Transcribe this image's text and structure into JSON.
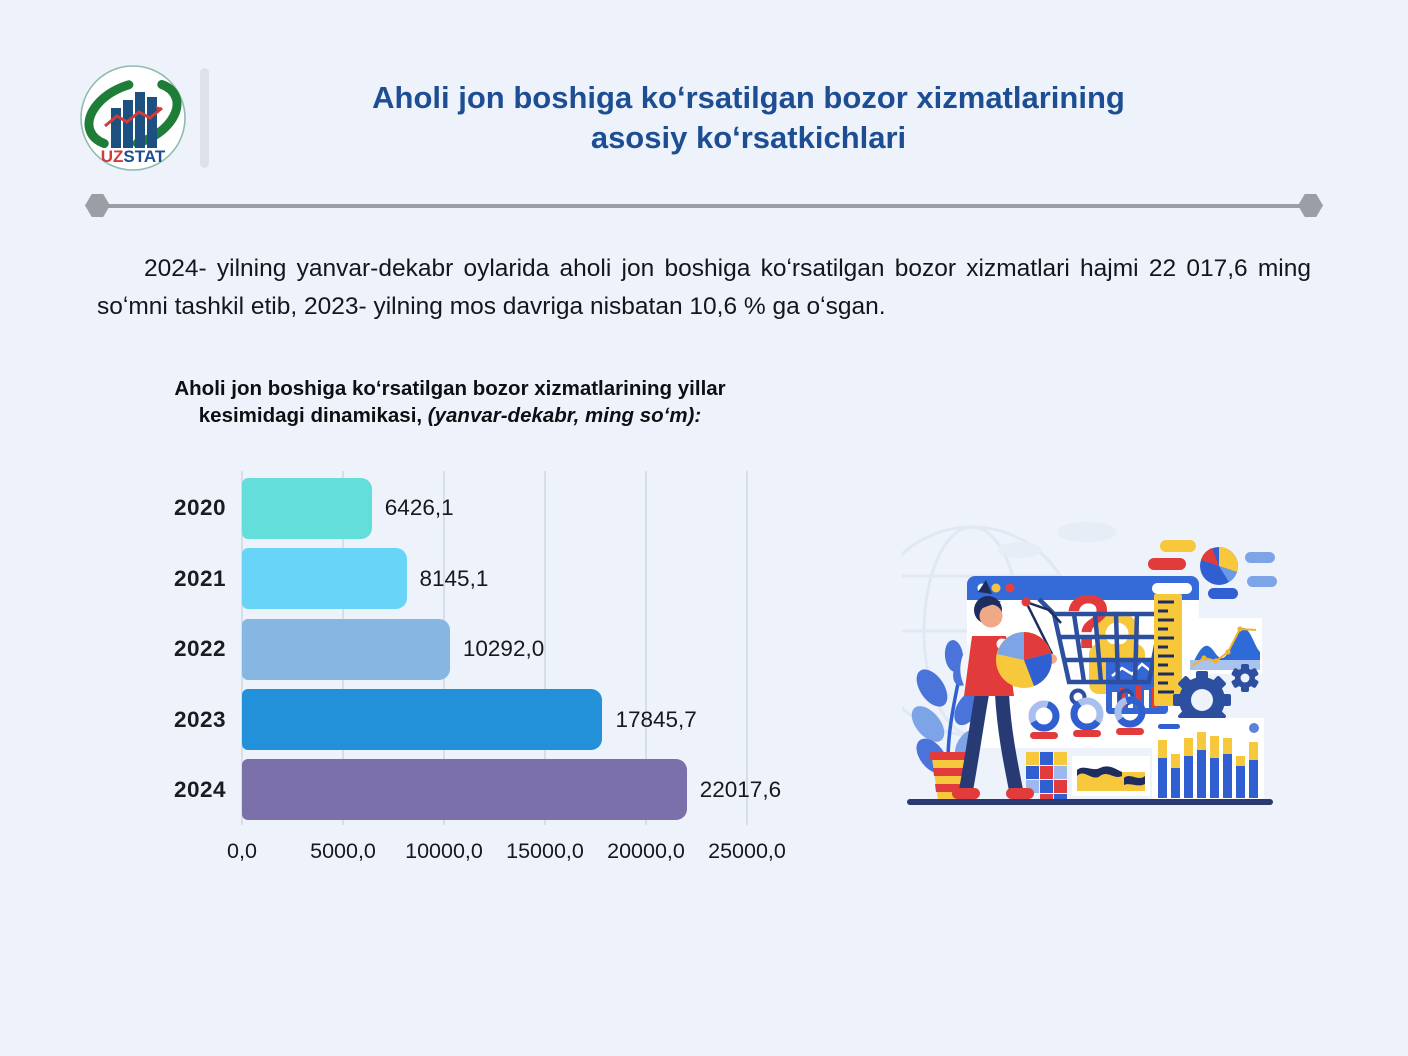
{
  "header": {
    "title_line1": "Aholi jon boshiga koʻrsatilgan bozor xizmatlarining",
    "title_line2": "asosiy koʻrsatkichlari",
    "logo": {
      "uz": "UZ",
      "stat": "STAT"
    }
  },
  "paragraph": "2024- yilning yanvar-dekabr oylarida aholi jon boshiga koʻrsatilgan bozor xizmatlari hajmi 22 017,6 ming soʻmni tashkil etib, 2023- yilning mos davriga nisbatan 10,6 % ga oʻsgan.",
  "chart_data": {
    "type": "bar",
    "orientation": "horizontal",
    "title_line1": "Aholi jon boshiga koʻrsatilgan bozor xizmatlarining yillar",
    "title_line2_normal": "kesimidagi dinamikasi, ",
    "title_note": "(yanvar-dekabr, ming soʻm):",
    "categories": [
      "2020",
      "2021",
      "2022",
      "2023",
      "2024"
    ],
    "values": [
      6426.1,
      8145.1,
      10292.0,
      17845.7,
      22017.6
    ],
    "value_labels": [
      "6426,1",
      "8145,1",
      "10292,0",
      "17845,7",
      "22017,6"
    ],
    "bar_colors": [
      "#63dedb",
      "#67d4f8",
      "#85b7e2",
      "#2391d9",
      "#7b70a9"
    ],
    "xlim": [
      0,
      25000
    ],
    "x_ticks": [
      "0,0",
      "5000,0",
      "10000,0",
      "15000,0",
      "20000,0",
      "25000,0"
    ],
    "grid": true,
    "legend": false,
    "colors": {
      "grid": "#d8dee9",
      "accent_title": "#1d4e94"
    }
  }
}
